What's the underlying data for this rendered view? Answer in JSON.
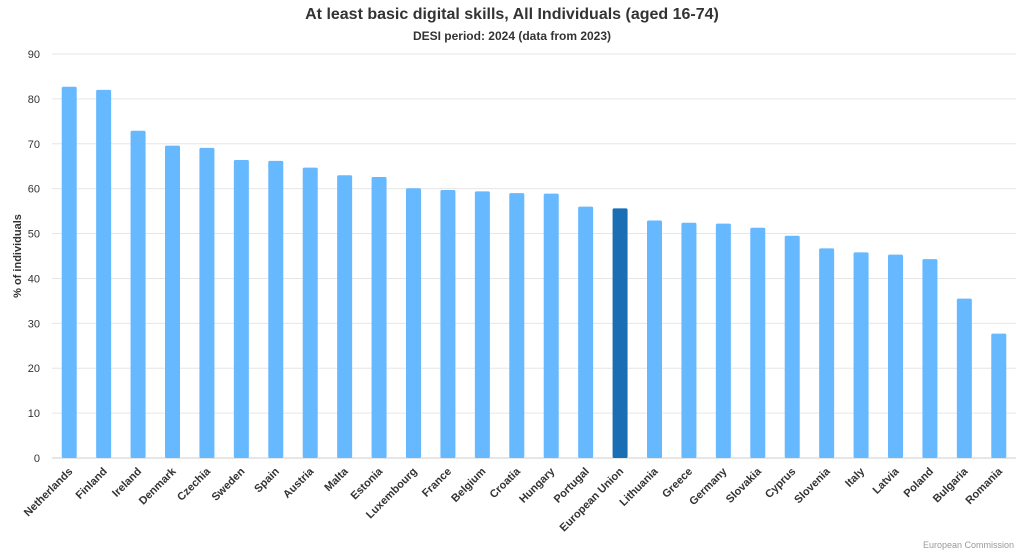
{
  "chart_data": {
    "type": "bar",
    "title": "At least basic digital skills, All Individuals (aged 16-74)",
    "subtitle": "DESI period: 2024 (data from 2023)",
    "ylabel": "% of individuals",
    "xlabel": "",
    "ylim": [
      0,
      90
    ],
    "yticks": [
      0,
      10,
      20,
      30,
      40,
      50,
      60,
      70,
      80,
      90
    ],
    "grid": true,
    "legend": "none",
    "categories": [
      "Netherlands",
      "Finland",
      "Ireland",
      "Denmark",
      "Czechia",
      "Sweden",
      "Spain",
      "Austria",
      "Malta",
      "Estonia",
      "Luxembourg",
      "France",
      "Belgium",
      "Croatia",
      "Hungary",
      "Portugal",
      "European Union",
      "Lithuania",
      "Greece",
      "Germany",
      "Slovakia",
      "Cyprus",
      "Slovenia",
      "Italy",
      "Latvia",
      "Poland",
      "Bulgaria",
      "Romania"
    ],
    "values": [
      82.7,
      82.0,
      72.9,
      69.6,
      69.1,
      66.4,
      66.2,
      64.7,
      63.0,
      62.6,
      60.1,
      59.7,
      59.4,
      59.0,
      58.9,
      56.0,
      55.6,
      52.9,
      52.4,
      52.2,
      51.3,
      49.5,
      46.7,
      45.8,
      45.3,
      44.3,
      35.5,
      27.7
    ],
    "highlight": "European Union",
    "colors": {
      "bar": "#66b8ff",
      "highlight": "#1a6eb4",
      "grid": "#e6e6e6",
      "axis": "#cccccc"
    }
  },
  "credits": "European Commission"
}
